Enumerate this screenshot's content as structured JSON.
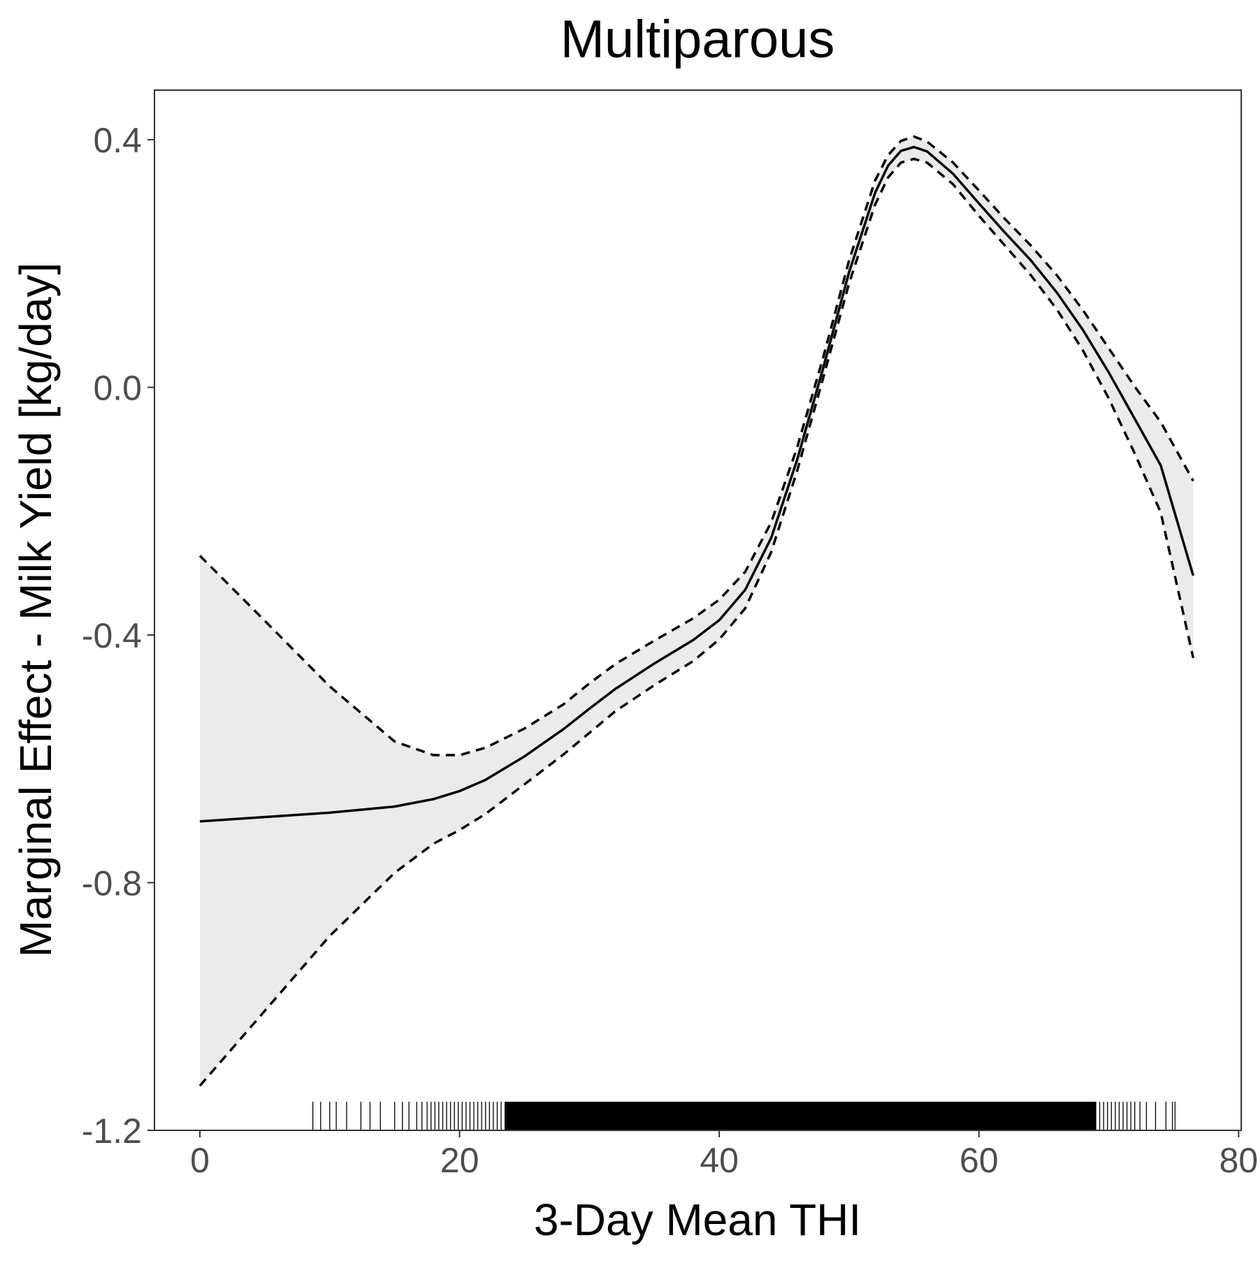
{
  "chart_data": {
    "type": "line",
    "title": "Multiparous",
    "xlabel": "3-Day Mean THI",
    "ylabel": "Marginal Effect - Milk Yield [kg/day]",
    "xlim": [
      -3.5,
      80.2
    ],
    "ylim": [
      -1.2,
      0.48
    ],
    "x_ticks": [
      0,
      20,
      40,
      60,
      80
    ],
    "x_tick_labels": [
      "0",
      "20",
      "40",
      "60",
      "80"
    ],
    "y_ticks": [
      -1.2,
      -0.8,
      -0.4,
      0.0,
      0.4
    ],
    "y_tick_labels": [
      "-1.2",
      "-0.8",
      "-0.4",
      "0.0",
      "0.4"
    ],
    "grid": false,
    "legend": "none",
    "colors": {
      "line": "#000000",
      "band": "#ebebeb",
      "panel_border": "#333333",
      "tick_text": "#4d4d4d"
    },
    "series": [
      {
        "role": "estimate",
        "style": "solid",
        "x": [
          0,
          5,
          10,
          15,
          18,
          20,
          22,
          25,
          28,
          30,
          32,
          35,
          38,
          40,
          42,
          44,
          46,
          48,
          50,
          52,
          53,
          54,
          55,
          56,
          58,
          60,
          62,
          64,
          66,
          68,
          70,
          72,
          74,
          76.5
        ],
        "y": [
          -0.701,
          -0.694,
          -0.687,
          -0.677,
          -0.665,
          -0.652,
          -0.634,
          -0.596,
          -0.552,
          -0.519,
          -0.487,
          -0.446,
          -0.408,
          -0.376,
          -0.327,
          -0.243,
          -0.117,
          0.031,
          0.186,
          0.314,
          0.358,
          0.382,
          0.388,
          0.381,
          0.345,
          0.297,
          0.25,
          0.205,
          0.153,
          0.093,
          0.024,
          -0.051,
          -0.126,
          -0.304
        ]
      },
      {
        "role": "upper",
        "style": "dashed",
        "x": [
          0,
          5,
          10,
          15,
          18,
          20,
          22,
          25,
          28,
          30,
          32,
          35,
          38,
          40,
          42,
          44,
          46,
          48,
          50,
          52,
          53,
          54,
          55,
          56,
          58,
          60,
          62,
          64,
          66,
          68,
          70,
          72,
          74,
          76.5
        ],
        "y": [
          -0.272,
          -0.377,
          -0.483,
          -0.572,
          -0.594,
          -0.594,
          -0.582,
          -0.551,
          -0.512,
          -0.478,
          -0.447,
          -0.409,
          -0.373,
          -0.343,
          -0.298,
          -0.218,
          -0.097,
          0.048,
          0.205,
          0.334,
          0.375,
          0.398,
          0.405,
          0.397,
          0.363,
          0.318,
          0.272,
          0.229,
          0.181,
          0.125,
          0.063,
          0.001,
          -0.056,
          -0.151
        ]
      },
      {
        "role": "lower",
        "style": "dashed",
        "x": [
          0,
          5,
          10,
          15,
          18,
          20,
          22,
          25,
          28,
          30,
          32,
          35,
          38,
          40,
          42,
          44,
          46,
          48,
          50,
          52,
          53,
          54,
          55,
          56,
          58,
          60,
          62,
          64,
          66,
          68,
          70,
          72,
          74,
          76.5
        ],
        "y": [
          -1.128,
          -1.007,
          -0.886,
          -0.784,
          -0.737,
          -0.715,
          -0.689,
          -0.641,
          -0.593,
          -0.558,
          -0.523,
          -0.481,
          -0.442,
          -0.407,
          -0.357,
          -0.266,
          -0.135,
          0.015,
          0.168,
          0.295,
          0.339,
          0.363,
          0.369,
          0.363,
          0.328,
          0.277,
          0.229,
          0.181,
          0.126,
          0.06,
          -0.018,
          -0.107,
          -0.202,
          -0.437
        ]
      }
    ],
    "rug_x": [
      8.7,
      9.3,
      10.0,
      10.5,
      11.3,
      12.4,
      13.1,
      13.9,
      15.0,
      15.6,
      16.1,
      16.7,
      17.1,
      17.5,
      17.8,
      18.1,
      18.4,
      18.7,
      19.0,
      19.3,
      19.6,
      19.9,
      20.2,
      20.5,
      20.8,
      21.1,
      21.4,
      21.7,
      22.0,
      22.3,
      22.6,
      22.9,
      23.2,
      23.5,
      69.0,
      69.3,
      69.6,
      69.9,
      70.2,
      70.5,
      70.8,
      71.1,
      71.4,
      71.7,
      72.0,
      72.4,
      72.9,
      73.6,
      74.4,
      74.9,
      75.1
    ],
    "rug_dense_range": [
      23.5,
      69.0
    ]
  }
}
